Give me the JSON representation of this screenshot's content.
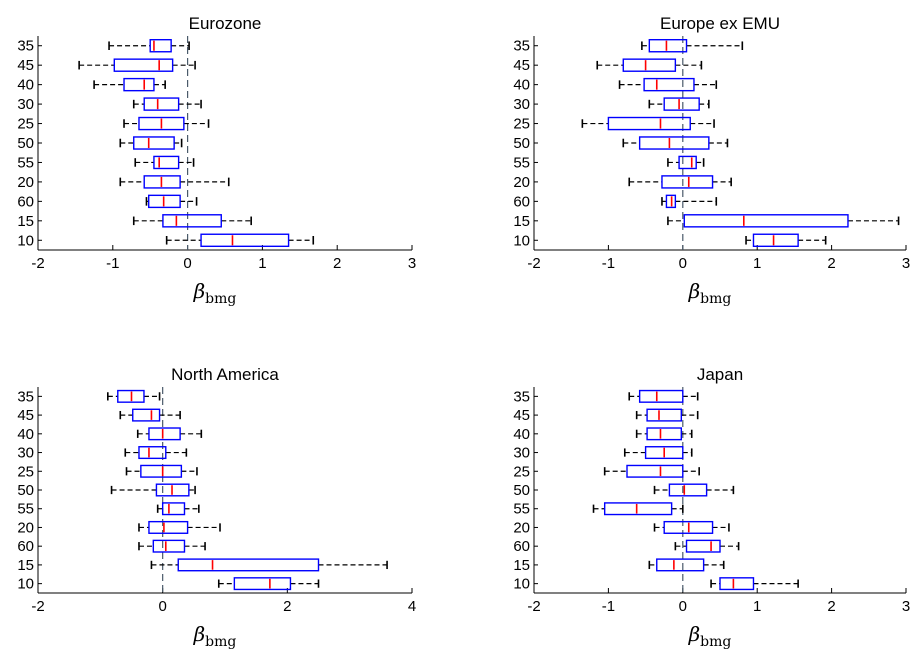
{
  "figure": {
    "colors": {
      "box": "#0000ff",
      "median": "#ff0000",
      "whisker": "#000000",
      "zero_line": "#4a5a6a"
    }
  },
  "chart_data": [
    {
      "type": "boxplot",
      "title": "Eurozone",
      "xlabel": "β",
      "xlabel_sub": "bmg",
      "xlim": [
        -2,
        3
      ],
      "xticks": [
        -2,
        -1,
        0,
        1,
        2,
        3
      ],
      "categories": [
        "35",
        "45",
        "40",
        "30",
        "25",
        "50",
        "55",
        "20",
        "60",
        "15",
        "10"
      ],
      "boxes": [
        {
          "min": -1.05,
          "q1": -0.5,
          "median": -0.45,
          "q3": -0.22,
          "max": 0.02
        },
        {
          "min": -1.45,
          "q1": -0.98,
          "median": -0.38,
          "q3": -0.2,
          "max": 0.1
        },
        {
          "min": -1.25,
          "q1": -0.85,
          "median": -0.58,
          "q3": -0.45,
          "max": -0.3
        },
        {
          "min": -0.72,
          "q1": -0.58,
          "median": -0.4,
          "q3": -0.12,
          "max": 0.18
        },
        {
          "min": -0.85,
          "q1": -0.65,
          "median": -0.35,
          "q3": -0.05,
          "max": 0.28
        },
        {
          "min": -0.9,
          "q1": -0.72,
          "median": -0.52,
          "q3": -0.18,
          "max": -0.08
        },
        {
          "min": -0.7,
          "q1": -0.45,
          "median": -0.38,
          "q3": -0.12,
          "max": 0.08
        },
        {
          "min": -0.9,
          "q1": -0.58,
          "median": -0.35,
          "q3": -0.1,
          "max": 0.55
        },
        {
          "min": -0.55,
          "q1": -0.52,
          "median": -0.32,
          "q3": -0.1,
          "max": 0.12
        },
        {
          "min": -0.72,
          "q1": -0.33,
          "median": -0.15,
          "q3": 0.45,
          "max": 0.85
        },
        {
          "min": -0.28,
          "q1": 0.18,
          "median": 0.6,
          "q3": 1.35,
          "max": 1.68
        }
      ]
    },
    {
      "type": "boxplot",
      "title": "Europe ex EMU",
      "xlabel": "β",
      "xlabel_sub": "bmg",
      "xlim": [
        -2,
        3
      ],
      "xticks": [
        -2,
        -1,
        0,
        1,
        2,
        3
      ],
      "categories": [
        "35",
        "45",
        "40",
        "30",
        "25",
        "50",
        "55",
        "20",
        "60",
        "15",
        "10"
      ],
      "boxes": [
        {
          "min": -0.55,
          "q1": -0.45,
          "median": -0.22,
          "q3": 0.05,
          "max": 0.8
        },
        {
          "min": -1.15,
          "q1": -0.8,
          "median": -0.5,
          "q3": -0.1,
          "max": 0.25
        },
        {
          "min": -0.85,
          "q1": -0.52,
          "median": -0.35,
          "q3": 0.15,
          "max": 0.45
        },
        {
          "min": -0.45,
          "q1": -0.25,
          "median": -0.05,
          "q3": 0.22,
          "max": 0.35
        },
        {
          "min": -1.35,
          "q1": -1.0,
          "median": -0.3,
          "q3": 0.1,
          "max": 0.42
        },
        {
          "min": -0.8,
          "q1": -0.58,
          "median": -0.18,
          "q3": 0.35,
          "max": 0.6
        },
        {
          "min": -0.2,
          "q1": -0.05,
          "median": 0.12,
          "q3": 0.18,
          "max": 0.28
        },
        {
          "min": -0.72,
          "q1": -0.28,
          "median": 0.08,
          "q3": 0.4,
          "max": 0.65
        },
        {
          "min": -0.28,
          "q1": -0.22,
          "median": -0.15,
          "q3": -0.1,
          "max": 0.45
        },
        {
          "min": -0.2,
          "q1": 0.02,
          "median": 0.82,
          "q3": 2.22,
          "max": 2.9
        },
        {
          "min": 0.85,
          "q1": 0.95,
          "median": 1.22,
          "q3": 1.55,
          "max": 1.92
        }
      ]
    },
    {
      "type": "boxplot",
      "title": "North America",
      "xlabel": "β",
      "xlabel_sub": "bmg",
      "xlim": [
        -2,
        4
      ],
      "xticks": [
        -2,
        0,
        2,
        4
      ],
      "categories": [
        "35",
        "45",
        "40",
        "30",
        "25",
        "50",
        "55",
        "20",
        "60",
        "15",
        "10"
      ],
      "boxes": [
        {
          "min": -0.88,
          "q1": -0.72,
          "median": -0.5,
          "q3": -0.3,
          "max": -0.05
        },
        {
          "min": -0.68,
          "q1": -0.48,
          "median": -0.18,
          "q3": -0.05,
          "max": 0.28
        },
        {
          "min": -0.4,
          "q1": -0.22,
          "median": 0.0,
          "q3": 0.28,
          "max": 0.62
        },
        {
          "min": -0.6,
          "q1": -0.38,
          "median": -0.22,
          "q3": 0.05,
          "max": 0.38
        },
        {
          "min": -0.58,
          "q1": -0.35,
          "median": 0.0,
          "q3": 0.3,
          "max": 0.55
        },
        {
          "min": -0.82,
          "q1": -0.1,
          "median": 0.15,
          "q3": 0.42,
          "max": 0.52
        },
        {
          "min": -0.08,
          "q1": 0.0,
          "median": 0.1,
          "q3": 0.35,
          "max": 0.58
        },
        {
          "min": -0.38,
          "q1": -0.22,
          "median": 0.02,
          "q3": 0.4,
          "max": 0.92
        },
        {
          "min": -0.38,
          "q1": -0.15,
          "median": 0.05,
          "q3": 0.35,
          "max": 0.68
        },
        {
          "min": -0.18,
          "q1": 0.25,
          "median": 0.8,
          "q3": 2.5,
          "max": 3.6
        },
        {
          "min": 0.9,
          "q1": 1.15,
          "median": 1.72,
          "q3": 2.05,
          "max": 2.5
        }
      ]
    },
    {
      "type": "boxplot",
      "title": "Japan",
      "xlabel": "β",
      "xlabel_sub": "bmg",
      "xlim": [
        -2,
        3
      ],
      "xticks": [
        -2,
        -1,
        0,
        1,
        2,
        3
      ],
      "categories": [
        "35",
        "45",
        "40",
        "30",
        "25",
        "50",
        "55",
        "20",
        "60",
        "15",
        "10"
      ],
      "boxes": [
        {
          "min": -0.72,
          "q1": -0.58,
          "median": -0.35,
          "q3": 0.0,
          "max": 0.2
        },
        {
          "min": -0.62,
          "q1": -0.48,
          "median": -0.32,
          "q3": -0.02,
          "max": 0.2
        },
        {
          "min": -0.62,
          "q1": -0.48,
          "median": -0.3,
          "q3": -0.02,
          "max": 0.12
        },
        {
          "min": -0.78,
          "q1": -0.5,
          "median": -0.25,
          "q3": 0.0,
          "max": 0.12
        },
        {
          "min": -1.05,
          "q1": -0.75,
          "median": -0.3,
          "q3": 0.0,
          "max": 0.22
        },
        {
          "min": -0.38,
          "q1": -0.18,
          "median": 0.02,
          "q3": 0.32,
          "max": 0.68
        },
        {
          "min": -1.2,
          "q1": -1.05,
          "median": -0.62,
          "q3": -0.15,
          "max": 0.0
        },
        {
          "min": -0.38,
          "q1": -0.25,
          "median": 0.08,
          "q3": 0.4,
          "max": 0.62
        },
        {
          "min": -0.1,
          "q1": 0.05,
          "median": 0.38,
          "q3": 0.5,
          "max": 0.75
        },
        {
          "min": -0.45,
          "q1": -0.35,
          "median": -0.12,
          "q3": 0.28,
          "max": 0.55
        },
        {
          "min": 0.38,
          "q1": 0.5,
          "median": 0.68,
          "q3": 0.95,
          "max": 1.55
        }
      ]
    }
  ]
}
